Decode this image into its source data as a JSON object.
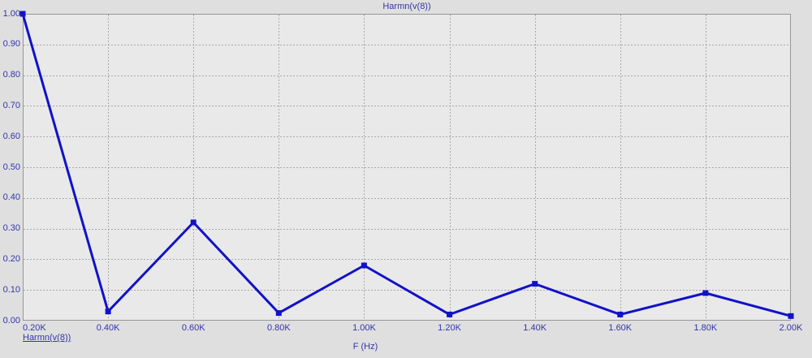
{
  "window": {
    "background": "#dfdfdf"
  },
  "chart_data": {
    "type": "line",
    "title": "Harmn(v(8))",
    "xlabel": "F (Hz)",
    "ylabel": "",
    "grid": true,
    "legend_position": "bottom-left",
    "xlim": [
      200,
      2000
    ],
    "ylim": [
      0,
      1
    ],
    "x_ticks": [
      200,
      400,
      600,
      800,
      1000,
      1200,
      1400,
      1600,
      1800,
      2000
    ],
    "x_tick_labels": [
      "0.20K",
      "0.40K",
      "0.60K",
      "0.80K",
      "1.00K",
      "1.20K",
      "1.40K",
      "1.60K",
      "1.80K",
      "2.00K"
    ],
    "y_ticks": [
      0,
      0.1,
      0.2,
      0.3,
      0.4,
      0.5,
      0.6,
      0.7,
      0.8,
      0.9,
      1.0
    ],
    "y_tick_labels": [
      "0.00",
      "0.10",
      "0.20",
      "0.30",
      "0.40",
      "0.50",
      "0.60",
      "0.70",
      "0.80",
      "0.90",
      "1.00"
    ],
    "series": [
      {
        "name": "Harmn(v(8))",
        "color": "#1111c8",
        "marker": "square",
        "x": [
          200,
          400,
          600,
          800,
          1000,
          1200,
          1400,
          1600,
          1800,
          2000
        ],
        "y": [
          1.0,
          0.03,
          0.32,
          0.025,
          0.18,
          0.02,
          0.12,
          0.02,
          0.09,
          0.015
        ]
      }
    ],
    "colors": {
      "text": "#3434aa",
      "grid": "#a8a8a8",
      "plot_bg": "#e9e9e9",
      "window_bg": "#dfdfdf",
      "border": "#969696"
    }
  }
}
